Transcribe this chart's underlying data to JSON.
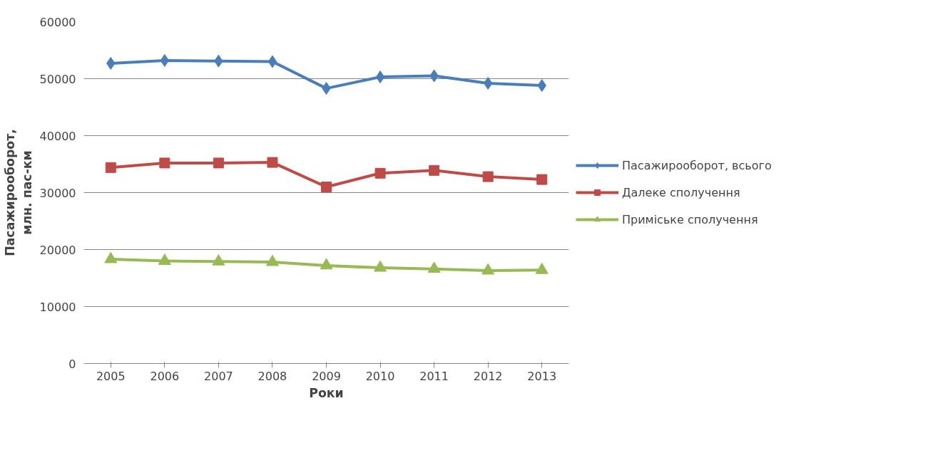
{
  "chart_data": {
    "type": "line",
    "xlabel": "Роки",
    "ylabel": "Пасажирооборот,\nмлн. пас-км",
    "categories": [
      "2005",
      "2006",
      "2007",
      "2008",
      "2009",
      "2010",
      "2011",
      "2012",
      "2013"
    ],
    "series": [
      {
        "name": "Пасажирооборот, всього",
        "color": "#4a7ebb",
        "marker": "diamond",
        "values": [
          52700,
          53200,
          53100,
          53000,
          48300,
          50300,
          50500,
          49200,
          48800
        ]
      },
      {
        "name": "Далеке сполучення",
        "color": "#be4b48",
        "marker": "square",
        "values": [
          34400,
          35200,
          35200,
          35300,
          31000,
          33400,
          33900,
          32800,
          32300
        ]
      },
      {
        "name": "Приміське сполучення",
        "color": "#98b954",
        "marker": "triangle",
        "values": [
          18300,
          18000,
          17900,
          17800,
          17200,
          16800,
          16600,
          16300,
          16400
        ]
      }
    ],
    "ylim": [
      0,
      60000
    ],
    "yticks": [
      0,
      10000,
      20000,
      30000,
      40000,
      50000,
      60000
    ],
    "grid": "y",
    "legend": "right"
  }
}
